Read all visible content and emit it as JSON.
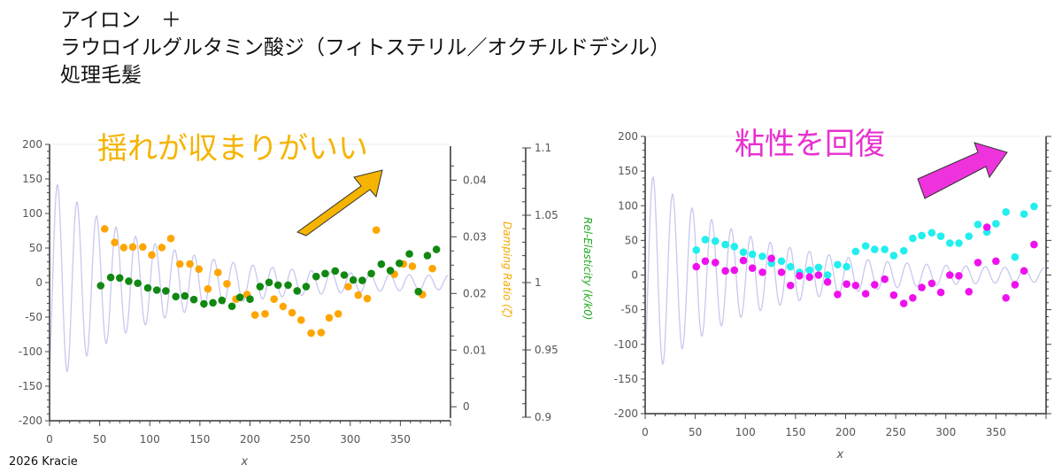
{
  "title_lines": [
    "アイロン　＋",
    "ラウロイルグルタミン酸ジ（フィトステリル／オクチルドデシル）",
    "処理毛髪"
  ],
  "footer": "2026 Kracie",
  "chart_data": [
    {
      "type": "scatter",
      "xlabel": "x",
      "x_ticks": [
        "0",
        "50",
        "100",
        "150",
        "200",
        "250",
        "300",
        "350"
      ],
      "xlim": [
        0,
        400
      ],
      "ylim": [
        -200,
        200
      ],
      "y_ticks": [
        "200",
        "150",
        "100",
        "50",
        "0",
        "-50",
        "-100",
        "-150",
        "-200"
      ],
      "y2_label": "Damping Ratio (ζ)",
      "y2_ticks": [
        "0.04",
        "0.03",
        "0.02",
        "0.01",
        "0"
      ],
      "y2lim": [
        -0.002,
        0.046
      ],
      "y3_label": "Rel-Elasticity (k/k0)",
      "y3_ticks": [
        "1.1",
        "1.05",
        "1",
        "0.95",
        "0.9"
      ],
      "y3lim": [
        0.9,
        1.1
      ],
      "annotation": "揺れが収まりがいい",
      "annotation_color": "#f5b400",
      "arrow_color": "#f5b400",
      "reference_wave": {
        "type": "damped_sine",
        "amplitude": 145,
        "offset_amplitude": 8,
        "decay": 0.0105,
        "period": 19.5,
        "color": "#c8c8f0"
      },
      "series": [
        {
          "axis": "y2",
          "color": "#ffa500",
          "x": [
            55,
            65,
            74,
            83,
            93,
            102,
            112,
            121,
            130,
            140,
            149,
            158,
            168,
            177,
            186,
            197,
            205,
            215,
            224,
            233,
            242,
            251,
            261,
            271,
            279,
            288,
            298,
            308,
            317,
            326,
            344,
            353,
            362,
            372,
            382
          ],
          "y": [
            0.0314,
            0.029,
            0.0281,
            0.0282,
            0.0282,
            0.0268,
            0.0281,
            0.0297,
            0.0252,
            0.0252,
            0.0243,
            0.0208,
            0.0237,
            0.0217,
            0.019,
            0.0198,
            0.0162,
            0.0164,
            0.019,
            0.0177,
            0.0166,
            0.0153,
            0.013,
            0.0131,
            0.0157,
            0.0164,
            0.0212,
            0.0197,
            0.0191,
            0.0312,
            0.0234,
            0.0252,
            0.0248,
            0.0198,
            0.0244
          ]
        },
        {
          "axis": "y3",
          "color": "#118811",
          "x": [
            51,
            61,
            70,
            79,
            88,
            98,
            107,
            116,
            126,
            135,
            144,
            154,
            163,
            172,
            182,
            190,
            200,
            210,
            219,
            228,
            238,
            247,
            256,
            266,
            275,
            285,
            294,
            303,
            312,
            321,
            331,
            340,
            349,
            359,
            368,
            377,
            386
          ],
          "y": [
            0.9977,
            1.0038,
            1.0034,
            1.001,
            0.9995,
            0.996,
            0.9944,
            0.9938,
            0.9896,
            0.9901,
            0.9874,
            0.9842,
            0.985,
            0.9868,
            0.9824,
            0.989,
            0.9877,
            0.997,
            1.0001,
            0.9981,
            0.9981,
            0.9938,
            0.997,
            1.0045,
            1.0067,
            1.0086,
            1.0056,
            1.0019,
            1.0016,
            1.0067,
            1.0137,
            1.0089,
            1.0143,
            1.0213,
            0.9933,
            1.02,
            1.0246
          ]
        }
      ]
    },
    {
      "type": "scatter",
      "xlabel": "x",
      "x_ticks": [
        "0",
        "50",
        "100",
        "150",
        "200",
        "250",
        "300",
        "350"
      ],
      "xlim": [
        0,
        400
      ],
      "ylim": [
        -200,
        200
      ],
      "y_ticks": [
        "200",
        "150",
        "100",
        "50",
        "0",
        "-50",
        "-100",
        "-150",
        "-200"
      ],
      "annotation": "粘性を回復",
      "annotation_color": "#e830d0",
      "arrow_color": "#ee33dd",
      "reference_wave": {
        "type": "damped_sine",
        "amplitude": 145,
        "offset_amplitude": 8,
        "decay": 0.0105,
        "period": 19.5,
        "color": "#c8c8f0"
      },
      "series": [
        {
          "color": "#22eeee",
          "x": [
            51,
            60,
            70,
            80,
            89,
            98,
            107,
            117,
            126,
            136,
            145,
            154,
            164,
            173,
            182,
            192,
            201,
            210,
            220,
            229,
            239,
            248,
            258,
            267,
            276,
            286,
            295,
            304,
            313,
            323,
            332,
            341,
            350,
            360,
            369,
            378,
            388
          ],
          "y": [
            36,
            51,
            49,
            44,
            41,
            33,
            30,
            27,
            17,
            20,
            12,
            4,
            7,
            11,
            0,
            15,
            12,
            34,
            42,
            37,
            37,
            28,
            35,
            53,
            57,
            61,
            56,
            46,
            46,
            56,
            73,
            62,
            74,
            91,
            26,
            88,
            99
          ]
        },
        {
          "color": "#ee11ee",
          "x": [
            51,
            60,
            70,
            80,
            89,
            98,
            107,
            117,
            126,
            136,
            145,
            154,
            164,
            173,
            182,
            192,
            201,
            210,
            220,
            229,
            239,
            248,
            258,
            267,
            276,
            286,
            295,
            304,
            313,
            323,
            332,
            341,
            350,
            360,
            369,
            378,
            388
          ],
          "y": [
            12,
            20,
            18,
            6,
            7,
            21,
            10,
            4,
            24,
            4,
            -15,
            -1,
            -3,
            0,
            -10,
            -28,
            -13,
            -15,
            -27,
            -14,
            -6,
            -29,
            -41,
            -33,
            -18,
            -12,
            -25,
            0,
            -1,
            -24,
            18,
            69,
            20,
            -33,
            -14,
            6,
            44
          ]
        }
      ]
    }
  ]
}
